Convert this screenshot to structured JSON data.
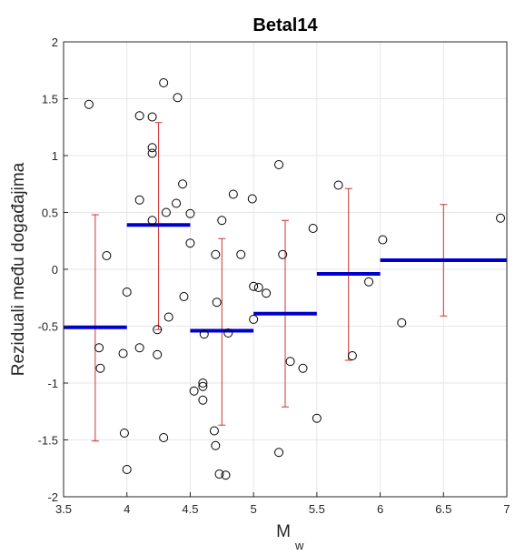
{
  "chart_data": {
    "type": "scatter",
    "title": "Betal14",
    "xlabel": "M",
    "xlabel_subscript": "w",
    "ylabel": "Reziduali među događajima",
    "xlim": [
      3.5,
      7
    ],
    "ylim": [
      -2,
      2
    ],
    "x_ticks": [
      3.5,
      4,
      4.5,
      5,
      5.5,
      6,
      6.5,
      7
    ],
    "x_tick_labels": [
      "3.5",
      "4",
      "4.5",
      "5",
      "5.5",
      "6",
      "6.5",
      "7"
    ],
    "y_ticks": [
      -2,
      -1.5,
      -1,
      -0.5,
      0,
      0.5,
      1,
      1.5,
      2
    ],
    "y_tick_labels": [
      "-2",
      "-1.5",
      "-1",
      "-0.5",
      "0",
      "0.5",
      "1",
      "1.5",
      "2"
    ],
    "grid": true,
    "colors": {
      "points": "#000000",
      "bin_means": "#0000cc",
      "error_bars": "#cc3333",
      "grid": "#e6e6e6",
      "axes": "#262626"
    },
    "points": [
      {
        "x": 3.7,
        "y": 1.45
      },
      {
        "x": 3.78,
        "y": -0.69
      },
      {
        "x": 3.79,
        "y": -0.87
      },
      {
        "x": 3.84,
        "y": 0.12
      },
      {
        "x": 3.97,
        "y": -0.74
      },
      {
        "x": 3.98,
        "y": -1.44
      },
      {
        "x": 4.0,
        "y": -1.76
      },
      {
        "x": 4.0,
        "y": -0.2
      },
      {
        "x": 4.1,
        "y": 1.35
      },
      {
        "x": 4.1,
        "y": 0.61
      },
      {
        "x": 4.1,
        "y": -0.69
      },
      {
        "x": 4.2,
        "y": 1.34
      },
      {
        "x": 4.2,
        "y": 1.07
      },
      {
        "x": 4.2,
        "y": 1.02
      },
      {
        "x": 4.2,
        "y": 0.43
      },
      {
        "x": 4.24,
        "y": -0.53
      },
      {
        "x": 4.24,
        "y": -0.75
      },
      {
        "x": 4.29,
        "y": 1.64
      },
      {
        "x": 4.29,
        "y": -1.48
      },
      {
        "x": 4.31,
        "y": 0.5
      },
      {
        "x": 4.33,
        "y": -0.42
      },
      {
        "x": 4.39,
        "y": 0.58
      },
      {
        "x": 4.4,
        "y": 1.51
      },
      {
        "x": 4.44,
        "y": 0.75
      },
      {
        "x": 4.45,
        "y": -0.24
      },
      {
        "x": 4.5,
        "y": 0.49
      },
      {
        "x": 4.5,
        "y": 0.23
      },
      {
        "x": 4.53,
        "y": -1.07
      },
      {
        "x": 4.6,
        "y": -1.0
      },
      {
        "x": 4.6,
        "y": -1.03
      },
      {
        "x": 4.6,
        "y": -1.15
      },
      {
        "x": 4.61,
        "y": -0.57
      },
      {
        "x": 4.69,
        "y": -1.42
      },
      {
        "x": 4.7,
        "y": 0.13
      },
      {
        "x": 4.7,
        "y": -1.55
      },
      {
        "x": 4.71,
        "y": -0.29
      },
      {
        "x": 4.73,
        "y": -1.8
      },
      {
        "x": 4.75,
        "y": 0.43
      },
      {
        "x": 4.78,
        "y": -1.81
      },
      {
        "x": 4.8,
        "y": -0.56
      },
      {
        "x": 4.84,
        "y": 0.66
      },
      {
        "x": 4.9,
        "y": 0.13
      },
      {
        "x": 4.99,
        "y": 0.62
      },
      {
        "x": 5.0,
        "y": -0.15
      },
      {
        "x": 5.0,
        "y": -0.44
      },
      {
        "x": 5.04,
        "y": -0.16
      },
      {
        "x": 5.1,
        "y": -0.21
      },
      {
        "x": 5.2,
        "y": 0.92
      },
      {
        "x": 5.2,
        "y": -1.61
      },
      {
        "x": 5.23,
        "y": 0.13
      },
      {
        "x": 5.29,
        "y": -0.81
      },
      {
        "x": 5.39,
        "y": -0.87
      },
      {
        "x": 5.47,
        "y": 0.36
      },
      {
        "x": 5.5,
        "y": -1.31
      },
      {
        "x": 5.67,
        "y": 0.74
      },
      {
        "x": 5.78,
        "y": -0.76
      },
      {
        "x": 5.91,
        "y": -0.11
      },
      {
        "x": 6.02,
        "y": 0.26
      },
      {
        "x": 6.17,
        "y": -0.47
      },
      {
        "x": 6.95,
        "y": 0.45
      }
    ],
    "bin_means": [
      {
        "x_start": 3.5,
        "x_end": 4.0,
        "y": -0.51
      },
      {
        "x_start": 4.0,
        "x_end": 4.5,
        "y": 0.39
      },
      {
        "x_start": 4.5,
        "x_end": 5.0,
        "y": -0.54
      },
      {
        "x_start": 5.0,
        "x_end": 5.5,
        "y": -0.39
      },
      {
        "x_start": 5.5,
        "x_end": 6.0,
        "y": -0.04
      },
      {
        "x_start": 6.0,
        "x_end": 7.0,
        "y": 0.08
      }
    ],
    "error_bars": [
      {
        "x": 3.75,
        "low": -1.51,
        "high": 0.48
      },
      {
        "x": 4.25,
        "low": -0.53,
        "high": 1.29
      },
      {
        "x": 4.75,
        "low": -1.37,
        "high": 0.27
      },
      {
        "x": 5.25,
        "low": -1.21,
        "high": 0.43
      },
      {
        "x": 5.75,
        "low": -0.8,
        "high": 0.71
      },
      {
        "x": 6.5,
        "low": -0.41,
        "high": 0.57
      }
    ]
  }
}
